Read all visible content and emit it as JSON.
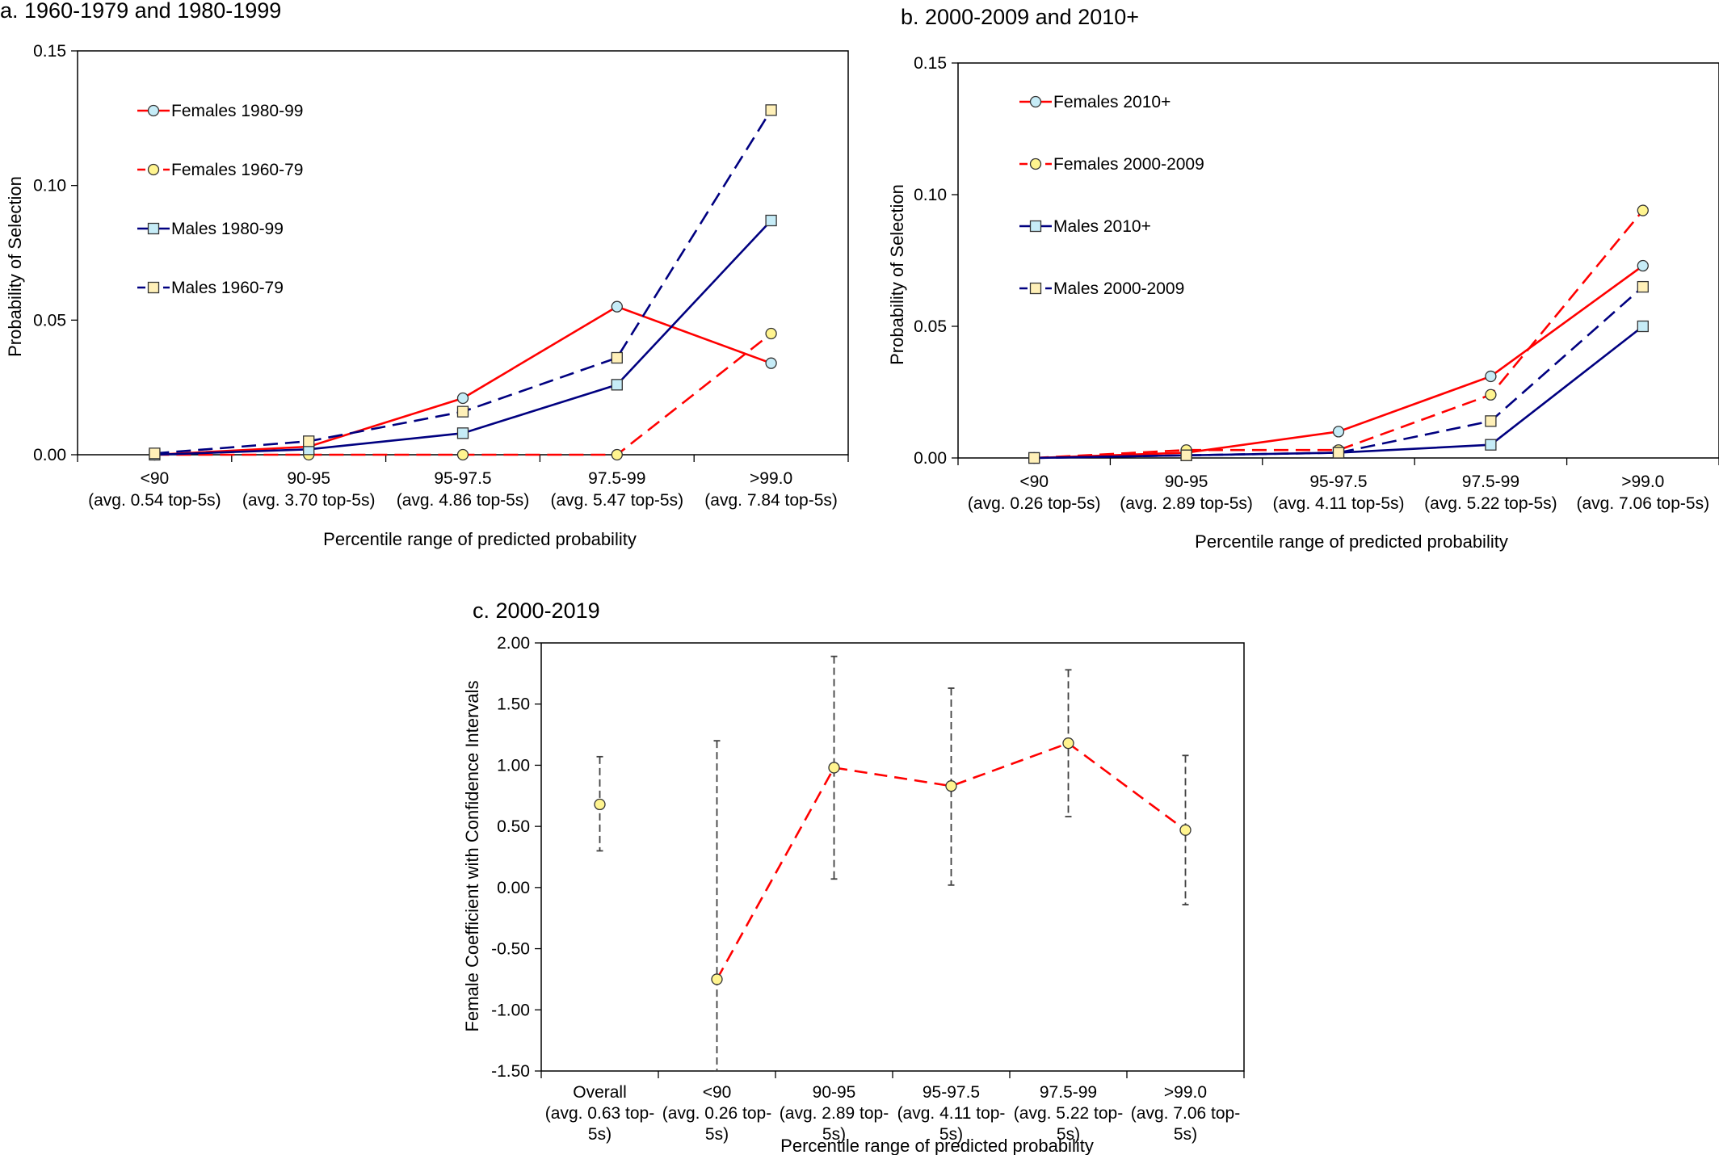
{
  "colors": {
    "red": "#ff0000",
    "navy": "#000080",
    "circle_fill": "#c6ecf7",
    "square_fill": "#fff0b8",
    "yellow_circle": "#fff48f",
    "ci": "#404040"
  },
  "chart_data": [
    {
      "type": "line",
      "title": "a. 1960-1979 and 1980-1999",
      "xlabel": "Percentile range of predicted probability",
      "ylabel": "Probability of Selection",
      "categories": [
        "<90",
        "90-95",
        "95-97.5",
        "97.5-99",
        ">99.0"
      ],
      "category_sublabels": [
        "(avg. 0.54 top-5s)",
        "(avg. 3.70 top-5s)",
        "(avg. 4.86 top-5s)",
        "(avg. 5.47 top-5s)",
        "(avg. 7.84 top-5s)"
      ],
      "ylim": [
        0,
        0.15
      ],
      "yticks": [
        "0.00",
        "0.05",
        "0.10",
        "0.15"
      ],
      "legend_position": "top-left",
      "series": [
        {
          "name": "Females 1980-99",
          "values": [
            0.0,
            0.003,
            0.021,
            0.055,
            0.034
          ],
          "color": "red",
          "dash": "solid",
          "marker": "circle",
          "fill": "circle_fill"
        },
        {
          "name": "Females 1960-79",
          "values": [
            0.0,
            0.0,
            0.0,
            0.0,
            0.045
          ],
          "color": "red",
          "dash": "dashed",
          "marker": "circle",
          "fill": "yellow_circle"
        },
        {
          "name": "Males 1980-99",
          "values": [
            0.0,
            0.002,
            0.008,
            0.026,
            0.087
          ],
          "color": "navy",
          "dash": "solid",
          "marker": "square",
          "fill": "circle_fill"
        },
        {
          "name": "Males 1960-79",
          "values": [
            0.0005,
            0.005,
            0.016,
            0.036,
            0.128
          ],
          "color": "navy",
          "dash": "dashed",
          "marker": "square",
          "fill": "square_fill"
        }
      ]
    },
    {
      "type": "line",
      "title": "b. 2000-2009 and 2010+",
      "xlabel": "Percentile range of predicted probability",
      "ylabel": "Probability of Selection",
      "categories": [
        "<90",
        "90-95",
        "95-97.5",
        "97.5-99",
        ">99.0"
      ],
      "category_sublabels": [
        "(avg. 0.26 top-5s)",
        "(avg. 2.89 top-5s)",
        "(avg. 4.11 top-5s)",
        "(avg. 5.22 top-5s)",
        "(avg. 7.06 top-5s)"
      ],
      "ylim": [
        0,
        0.15
      ],
      "yticks": [
        "0.00",
        "0.05",
        "0.10",
        "0.15"
      ],
      "legend_position": "top-left",
      "series": [
        {
          "name": "Females 2010+",
          "values": [
            0.0,
            0.002,
            0.01,
            0.031,
            0.073
          ],
          "color": "red",
          "dash": "solid",
          "marker": "circle",
          "fill": "circle_fill"
        },
        {
          "name": "Females 2000-2009",
          "values": [
            0.0,
            0.003,
            0.003,
            0.024,
            0.094
          ],
          "color": "red",
          "dash": "dashed",
          "marker": "circle",
          "fill": "yellow_circle"
        },
        {
          "name": "Males 2010+",
          "values": [
            0.0,
            0.001,
            0.002,
            0.005,
            0.05
          ],
          "color": "navy",
          "dash": "solid",
          "marker": "square",
          "fill": "circle_fill"
        },
        {
          "name": "Males 2000-2009",
          "values": [
            0.0,
            0.001,
            0.002,
            0.014,
            0.065
          ],
          "color": "navy",
          "dash": "dashed",
          "marker": "square",
          "fill": "square_fill"
        }
      ]
    },
    {
      "type": "line",
      "title": "c. 2000-2019",
      "xlabel": "Percentile range of predicted probability",
      "ylabel": "Female Coefficient with Confidence Intervals",
      "categories": [
        "Overall",
        "<90",
        "90-95",
        "95-97.5",
        "97.5-99",
        ">99.0"
      ],
      "category_line2": [
        "(avg. 0.63 top-",
        "(avg. 0.26 top-",
        "(avg. 2.89 top-",
        "(avg. 4.11 top-",
        "(avg. 5.22 top-",
        "(avg. 7.06 top-"
      ],
      "category_line3": [
        "5s)",
        "5s)",
        "5s)",
        "5s)",
        "5s)",
        "5s)"
      ],
      "ylim": [
        -1.5,
        2.0
      ],
      "yticks": [
        "-1.50",
        "-1.00",
        "-0.50",
        "0.00",
        "0.50",
        "1.00",
        "1.50",
        "2.00"
      ],
      "points": [
        0.68,
        -0.75,
        0.98,
        0.83,
        1.18,
        0.47
      ],
      "ci_lower": [
        0.3,
        -1.5,
        0.07,
        0.02,
        0.58,
        -0.14
      ],
      "ci_upper": [
        1.07,
        1.2,
        1.89,
        1.63,
        1.78,
        1.08
      ],
      "line_connects_from_index": 1
    }
  ]
}
